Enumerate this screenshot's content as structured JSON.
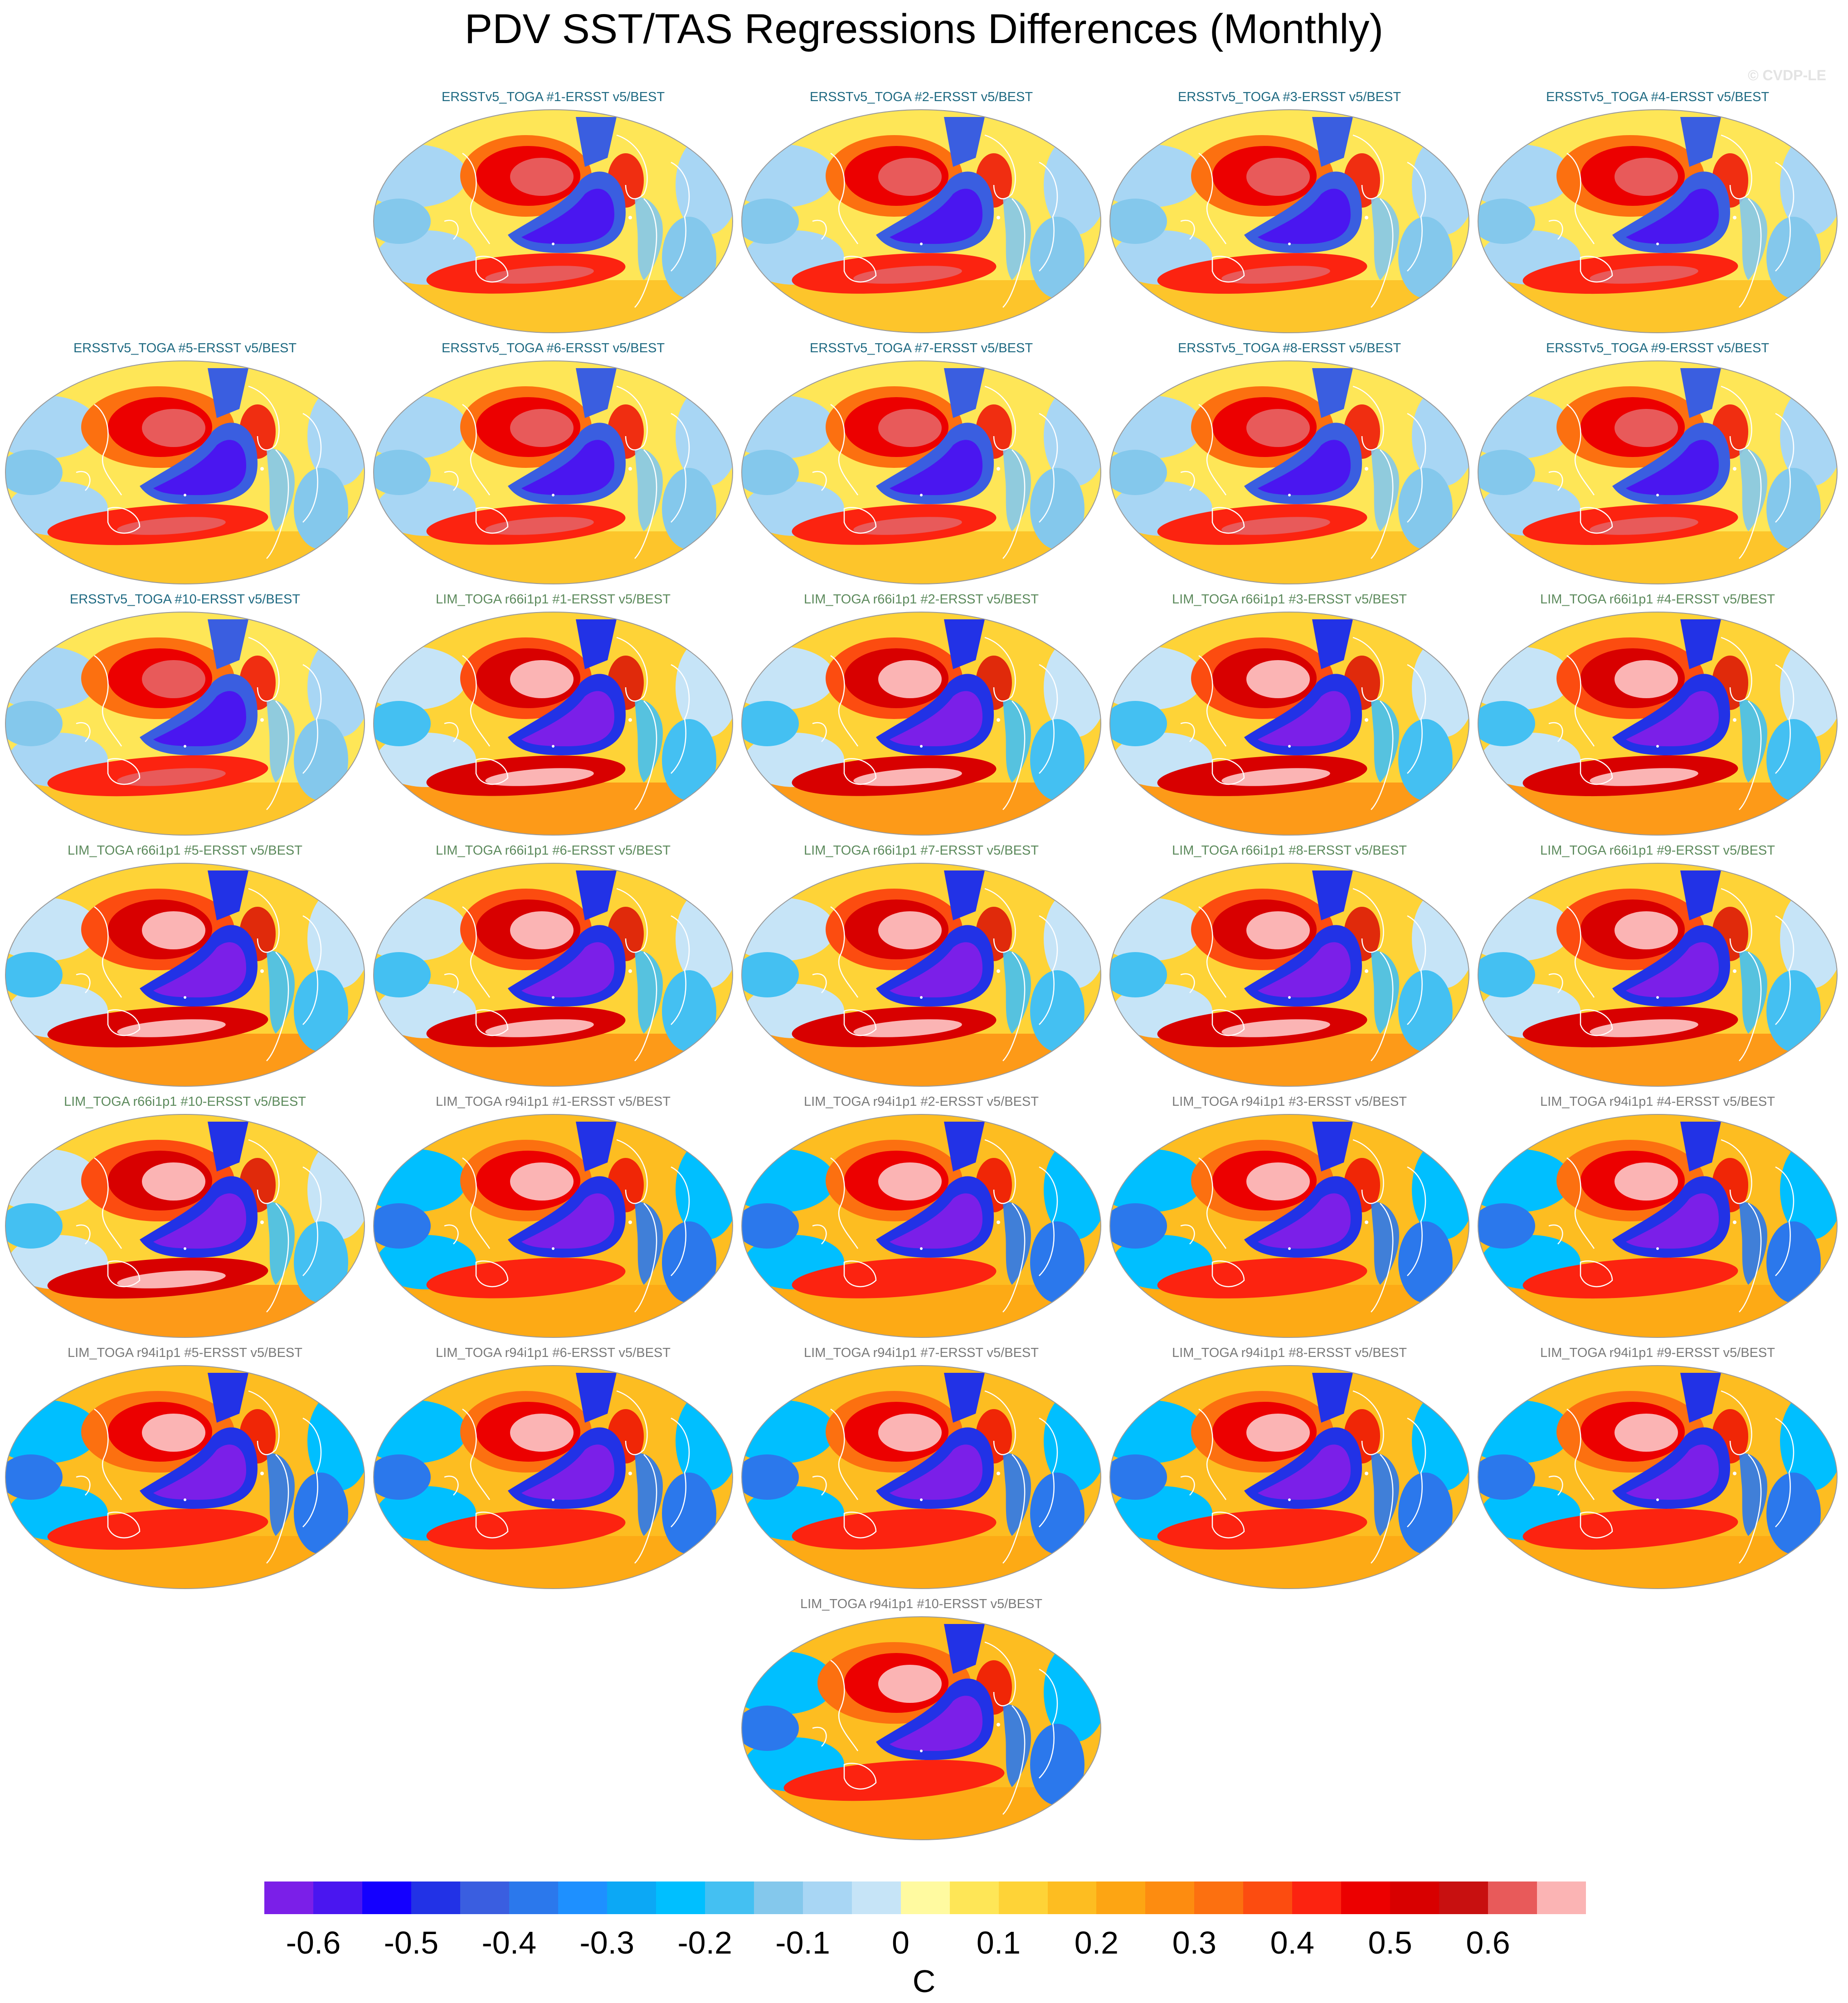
{
  "figure": {
    "title": "PDV SST/TAS Regressions Differences (Monthly)",
    "watermark": "© CVDP-LE"
  },
  "panels": [
    {
      "title": "ERSSTv5_TOGA #1-ERSST v5/BEST",
      "group": "ersst"
    },
    {
      "title": "ERSSTv5_TOGA #2-ERSST v5/BEST",
      "group": "ersst"
    },
    {
      "title": "ERSSTv5_TOGA #3-ERSST v5/BEST",
      "group": "ersst"
    },
    {
      "title": "ERSSTv5_TOGA #4-ERSST v5/BEST",
      "group": "ersst"
    },
    {
      "title": "ERSSTv5_TOGA #5-ERSST v5/BEST",
      "group": "ersst"
    },
    {
      "title": "ERSSTv5_TOGA #6-ERSST v5/BEST",
      "group": "ersst"
    },
    {
      "title": "ERSSTv5_TOGA #7-ERSST v5/BEST",
      "group": "ersst"
    },
    {
      "title": "ERSSTv5_TOGA #8-ERSST v5/BEST",
      "group": "ersst"
    },
    {
      "title": "ERSSTv5_TOGA #9-ERSST v5/BEST",
      "group": "ersst"
    },
    {
      "title": "ERSSTv5_TOGA #10-ERSST v5/BEST",
      "group": "ersst"
    },
    {
      "title": "LIM_TOGA r66i1p1 #1-ERSST v5/BEST",
      "group": "r66"
    },
    {
      "title": "LIM_TOGA r66i1p1 #2-ERSST v5/BEST",
      "group": "r66"
    },
    {
      "title": "LIM_TOGA r66i1p1 #3-ERSST v5/BEST",
      "group": "r66"
    },
    {
      "title": "LIM_TOGA r66i1p1 #4-ERSST v5/BEST",
      "group": "r66"
    },
    {
      "title": "LIM_TOGA r66i1p1 #5-ERSST v5/BEST",
      "group": "r66"
    },
    {
      "title": "LIM_TOGA r66i1p1 #6-ERSST v5/BEST",
      "group": "r66"
    },
    {
      "title": "LIM_TOGA r66i1p1 #7-ERSST v5/BEST",
      "group": "r66"
    },
    {
      "title": "LIM_TOGA r66i1p1 #8-ERSST v5/BEST",
      "group": "r66"
    },
    {
      "title": "LIM_TOGA r66i1p1 #9-ERSST v5/BEST",
      "group": "r66"
    },
    {
      "title": "LIM_TOGA r66i1p1 #10-ERSST v5/BEST",
      "group": "r66"
    },
    {
      "title": "LIM_TOGA r94i1p1 #1-ERSST v5/BEST",
      "group": "r94"
    },
    {
      "title": "LIM_TOGA r94i1p1 #2-ERSST v5/BEST",
      "group": "r94"
    },
    {
      "title": "LIM_TOGA r94i1p1 #3-ERSST v5/BEST",
      "group": "r94"
    },
    {
      "title": "LIM_TOGA r94i1p1 #4-ERSST v5/BEST",
      "group": "r94"
    },
    {
      "title": "LIM_TOGA r94i1p1 #5-ERSST v5/BEST",
      "group": "r94"
    },
    {
      "title": "LIM_TOGA r94i1p1 #6-ERSST v5/BEST",
      "group": "r94"
    },
    {
      "title": "LIM_TOGA r94i1p1 #7-ERSST v5/BEST",
      "group": "r94"
    },
    {
      "title": "LIM_TOGA r94i1p1 #8-ERSST v5/BEST",
      "group": "r94"
    },
    {
      "title": "LIM_TOGA r94i1p1 #9-ERSST v5/BEST",
      "group": "r94"
    },
    {
      "title": "LIM_TOGA r94i1p1 #10-ERSST v5/BEST",
      "group": "r94"
    }
  ],
  "title_colors": {
    "ersst": "#1f6a82",
    "r66": "#5c8a5c",
    "r94": "#7a7a7a"
  },
  "colorbar": {
    "unit": "C",
    "ticks": [
      "-0.6",
      "-0.5",
      "-0.4",
      "-0.3",
      "-0.2",
      "-0.1",
      "0",
      "0.1",
      "0.2",
      "0.3",
      "0.4",
      "0.5",
      "0.6"
    ],
    "colors": [
      "#7b1fe8",
      "#4a16f0",
      "#1400ff",
      "#2232e6",
      "#3a5ee0",
      "#2b78ec",
      "#1e90ff",
      "#0ca8f5",
      "#00bfff",
      "#44c0f2",
      "#84c8ec",
      "#a8d6f4",
      "#c6e4f7",
      "#fffaa0",
      "#fee657",
      "#fed337",
      "#fdbd21",
      "#fda513",
      "#fd8c10",
      "#fc7010",
      "#fc4c10",
      "#fc2310",
      "#ec0000",
      "#d80000",
      "#c81010",
      "#e85a5a",
      "#fbb4b4"
    ]
  }
}
